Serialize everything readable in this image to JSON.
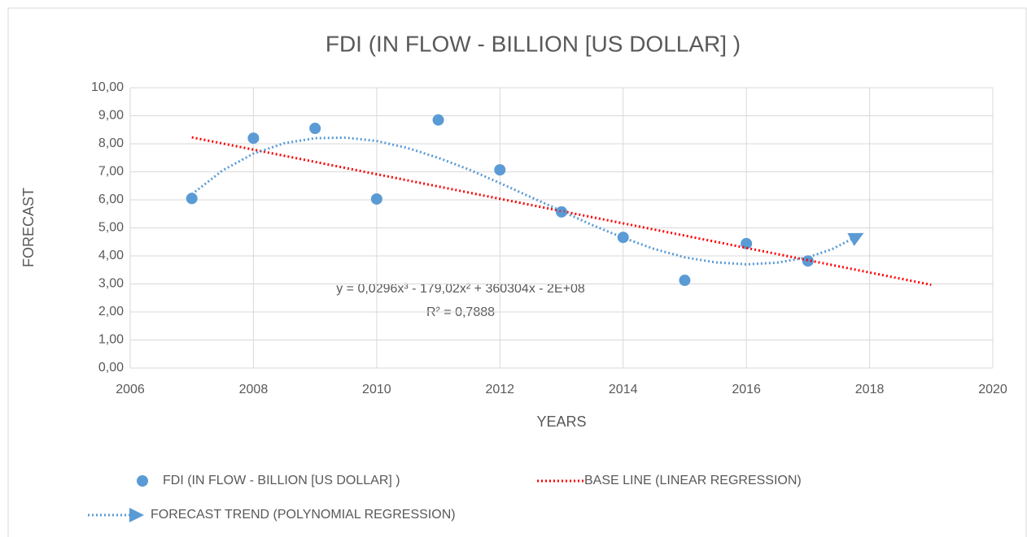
{
  "chart_data": {
    "type": "scatter",
    "title": "FDI (IN FLOW - BILLION [US DOLLAR] )",
    "x_label": "YEARS",
    "y_label": "FORECAST",
    "xlim": [
      2006,
      2020
    ],
    "xticks": [
      2006,
      2008,
      2010,
      2012,
      2014,
      2016,
      2018,
      2020
    ],
    "ylim": [
      0,
      10
    ],
    "yticks": [
      {
        "value": 0,
        "label": "0,00"
      },
      {
        "value": 1,
        "label": "1,00"
      },
      {
        "value": 2,
        "label": "2,00"
      },
      {
        "value": 3,
        "label": "3,00"
      },
      {
        "value": 4,
        "label": "4,00"
      },
      {
        "value": 5,
        "label": "5,00"
      },
      {
        "value": 6,
        "label": "6,00"
      },
      {
        "value": 7,
        "label": "7,00"
      },
      {
        "value": 8,
        "label": "8,00"
      },
      {
        "value": 9,
        "label": "9,00"
      },
      {
        "value": 10,
        "label": "10,00"
      }
    ],
    "grid": true,
    "legend": "bottom",
    "annotations": [
      "y = 0,0296x³ - 179,02x² + 360304x - 2E+08",
      "R² = 0,7888"
    ],
    "series": [
      {
        "name": "FDI (IN FLOW - BILLION [US DOLLAR] )",
        "color": "#5b9bd5",
        "style": "marker",
        "x": [
          2007,
          2008,
          2009,
          2010,
          2011,
          2012,
          2013,
          2014,
          2015,
          2016,
          2017
        ],
        "values": [
          6.05,
          8.2,
          8.55,
          6.03,
          8.85,
          7.07,
          5.57,
          4.66,
          3.13,
          4.44,
          3.82
        ]
      },
      {
        "name": "BASE LINE (LINEAR REGRESSION)",
        "color": "#ff0000",
        "style": "dotted",
        "x": [
          2007,
          2019
        ],
        "values": [
          8.23,
          2.97
        ]
      },
      {
        "name": "FORECAST TREND (POLYNOMIAL REGRESSION)",
        "color": "#5b9bd5",
        "style": "dotted-arrow",
        "x": [
          2007,
          2007.5,
          2008,
          2008.5,
          2009,
          2009.5,
          2010,
          2010.5,
          2011,
          2011.5,
          2012,
          2012.5,
          2013,
          2013.5,
          2014,
          2014.5,
          2015,
          2015.5,
          2016,
          2016.5,
          2017,
          2017.4,
          2017.8
        ],
        "values": [
          6.2,
          7.05,
          7.65,
          8.02,
          8.2,
          8.22,
          8.1,
          7.85,
          7.5,
          7.08,
          6.6,
          6.1,
          5.6,
          5.1,
          4.65,
          4.25,
          3.95,
          3.77,
          3.7,
          3.76,
          3.95,
          4.25,
          4.7
        ]
      }
    ]
  }
}
